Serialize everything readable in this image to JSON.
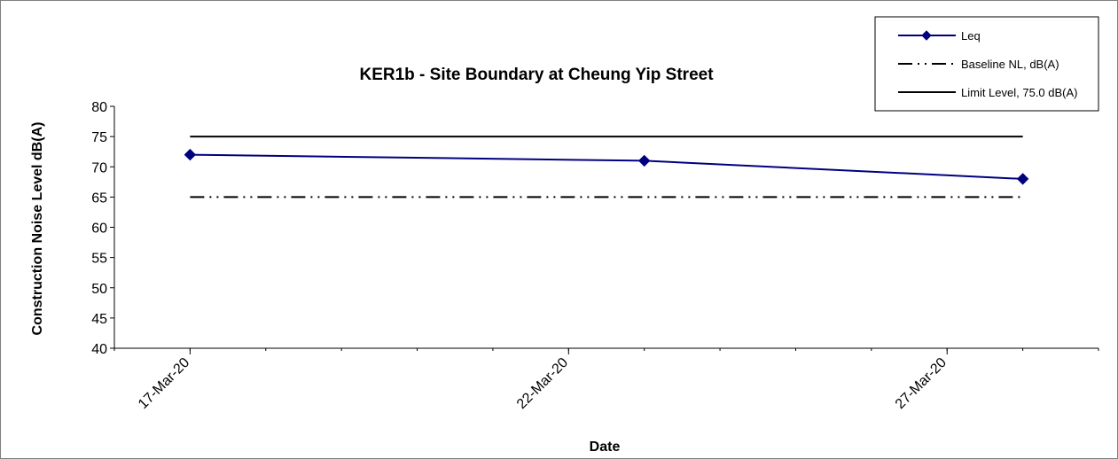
{
  "chart_data": {
    "type": "line",
    "title": "KER1b - Site Boundary at Cheung Yip Street",
    "xlabel": "Date",
    "ylabel": "Construction Noise Level  dB(A)",
    "ylim": [
      40,
      80
    ],
    "yticks": [
      80,
      75,
      70,
      65,
      60,
      55,
      50,
      45,
      40
    ],
    "xlim": [
      "2020-03-16",
      "2020-03-29"
    ],
    "xticks": [
      {
        "date": "2020-03-17",
        "label": "17-Mar-20"
      },
      {
        "date": "2020-03-22",
        "label": "22-Mar-20"
      },
      {
        "date": "2020-03-27",
        "label": "27-Mar-20"
      }
    ],
    "grid": false,
    "legend_position": "top-right",
    "series": [
      {
        "name": "Leq",
        "style": "line-diamond",
        "color": "#00007f",
        "x": [
          "2020-03-17",
          "2020-03-23",
          "2020-03-28"
        ],
        "values": [
          72,
          71,
          68
        ]
      },
      {
        "name": "Baseline NL, dB(A)",
        "style": "dash-dot-dot",
        "color": "#000000",
        "x": [
          "2020-03-17",
          "2020-03-28"
        ],
        "values": [
          65,
          65
        ]
      },
      {
        "name": "Limit Level, 75.0 dB(A)",
        "style": "solid",
        "color": "#000000",
        "x": [
          "2020-03-17",
          "2020-03-28"
        ],
        "values": [
          75,
          75
        ]
      }
    ]
  }
}
